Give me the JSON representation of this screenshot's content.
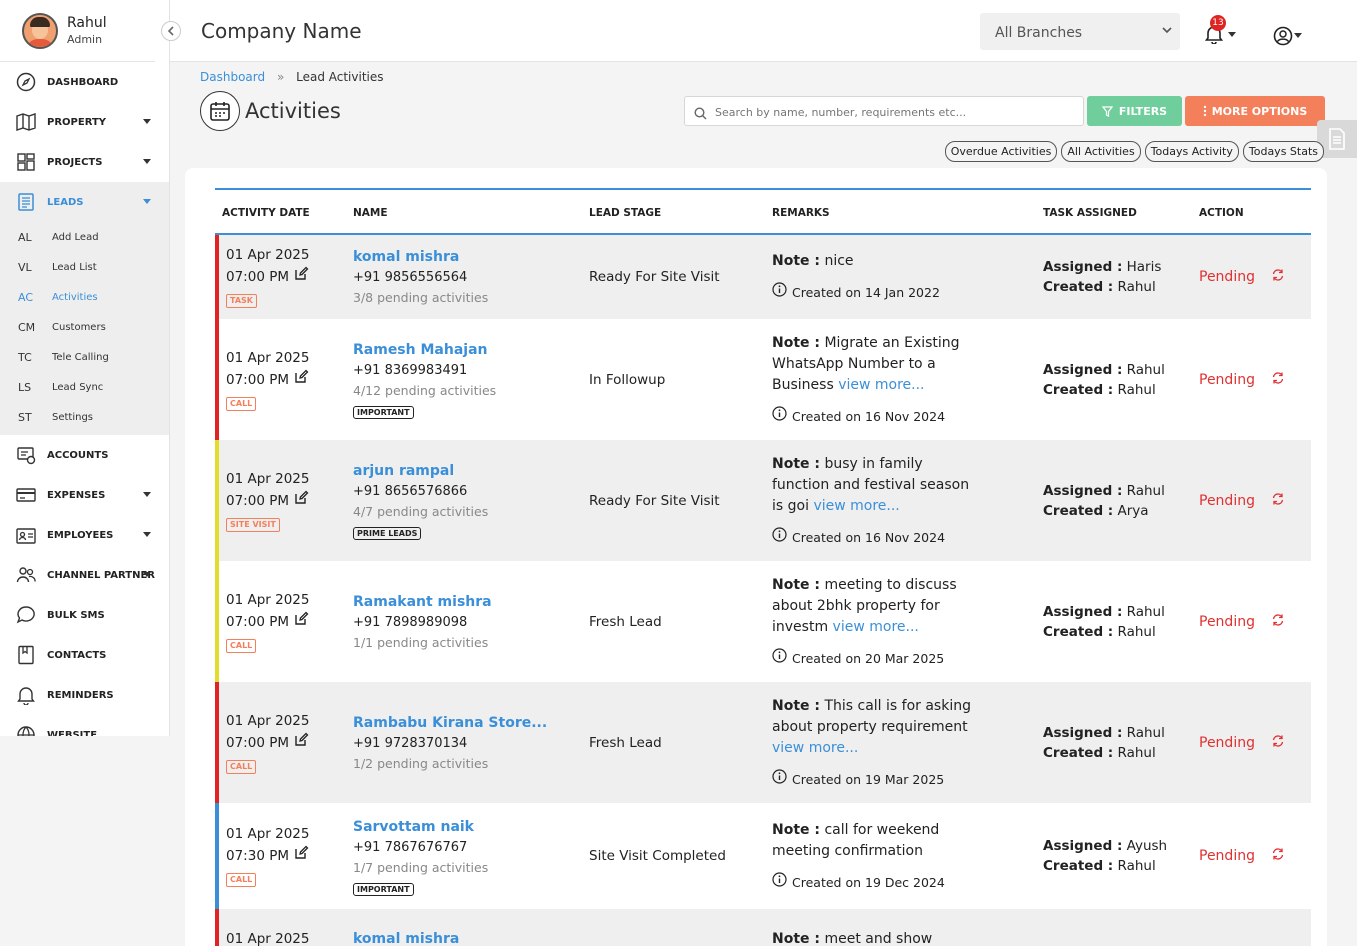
{
  "user": {
    "name": "Rahul",
    "role": "Admin"
  },
  "sidebar": {
    "items_top": [
      {
        "label": "DASHBOARD",
        "icon": "dashboard-icon",
        "caret": false
      },
      {
        "label": "PROPERTY",
        "icon": "map-icon",
        "caret": true
      },
      {
        "label": "PROJECTS",
        "icon": "projects-icon",
        "caret": true
      },
      {
        "label": "LEADS",
        "icon": "leads-icon",
        "caret": true,
        "active": true
      }
    ],
    "sub_items": [
      {
        "abbr": "AL",
        "label": "Add Lead"
      },
      {
        "abbr": "VL",
        "label": "Lead List"
      },
      {
        "abbr": "AC",
        "label": "Activities",
        "active": true
      },
      {
        "abbr": "CM",
        "label": "Customers"
      },
      {
        "abbr": "TC",
        "label": "Tele Calling"
      },
      {
        "abbr": "LS",
        "label": "Lead Sync"
      },
      {
        "abbr": "ST",
        "label": "Settings"
      }
    ],
    "items_bottom": [
      {
        "label": "ACCOUNTS",
        "icon": "accounts-icon",
        "caret": false
      },
      {
        "label": "EXPENSES",
        "icon": "card-icon",
        "caret": true
      },
      {
        "label": "EMPLOYEES",
        "icon": "id-card-icon",
        "caret": true
      },
      {
        "label": "CHANNEL PARTNER",
        "icon": "people-icon",
        "caret": true
      },
      {
        "label": "BULK SMS",
        "icon": "chat-icon",
        "caret": false
      },
      {
        "label": "CONTACTS",
        "icon": "book-icon",
        "caret": false
      },
      {
        "label": "REMINDERS",
        "icon": "bell-icon",
        "caret": false
      },
      {
        "label": "WEBSITE",
        "icon": "globe-icon",
        "caret": false
      }
    ]
  },
  "header": {
    "company": "Company Name",
    "branch": "All Branches",
    "notification_count": "13"
  },
  "breadcrumb": {
    "home": "Dashboard",
    "sep": "»",
    "current": "Lead Activities"
  },
  "page": {
    "title": "Activities",
    "search_placeholder": "Search by name, number, requirements etc...",
    "filters_label": "FILTERS",
    "more_label": "MORE OPTIONS"
  },
  "pills": [
    "Overdue Activities",
    "All Activities",
    "Todays Activity",
    "Todays Stats"
  ],
  "columns": [
    "ACTIVITY DATE",
    "NAME",
    "LEAD STAGE",
    "REMARKS",
    "TASK ASSIGNED",
    "ACTION"
  ],
  "labels": {
    "note": "Note :",
    "assigned": "Assigned :",
    "created": "Created :",
    "view_more": "view more..."
  },
  "rows": [
    {
      "date": "01 Apr 2025",
      "time": "07:00 PM",
      "tag": "TASK",
      "bar_color": "#e02424",
      "name": "komal mishra",
      "phone": "+91 9856556564",
      "pending": "3/8 pending activities",
      "badge": "",
      "stage": "Ready For Site Visit",
      "note": "nice",
      "more": false,
      "created_on": "Created on 14 Jan 2022",
      "assigned": "Haris",
      "created_by": "Rahul",
      "status": "Pending"
    },
    {
      "date": "01 Apr 2025",
      "time": "07:00 PM",
      "tag": "CALL",
      "bar_color": "#e02424",
      "name": "Ramesh Mahajan",
      "phone": "+91 8369983491",
      "pending": "4/12 pending activities",
      "badge": "IMPORTANT",
      "stage": "In Followup",
      "note": "Migrate an Existing WhatsApp Number to a Business",
      "more": true,
      "created_on": "Created on 16 Nov 2024",
      "assigned": "Rahul",
      "created_by": "Rahul",
      "status": "Pending"
    },
    {
      "date": "01 Apr 2025",
      "time": "07:00 PM",
      "tag": "SITE VISIT",
      "bar_color": "#e2dc2a",
      "name": "arjun rampal",
      "phone": "+91 8656576866",
      "pending": "4/7 pending activities",
      "badge": "PRIME LEADS",
      "stage": "Ready For Site Visit",
      "note": "busy in family function and festival season is goi",
      "more": true,
      "created_on": "Created on 16 Nov 2024",
      "assigned": "Rahul",
      "created_by": "Arya",
      "status": "Pending"
    },
    {
      "date": "01 Apr 2025",
      "time": "07:00 PM",
      "tag": "CALL",
      "bar_color": "#e2dc2a",
      "name": "Ramakant mishra",
      "phone": "+91 7898989098",
      "pending": "1/1 pending activities",
      "badge": "",
      "stage": "Fresh Lead",
      "note": "meeting to discuss about 2bhk property for investm",
      "more": true,
      "created_on": "Created on 20 Mar 2025",
      "assigned": "Rahul",
      "created_by": "Rahul",
      "status": "Pending"
    },
    {
      "date": "01 Apr 2025",
      "time": "07:00 PM",
      "tag": "CALL",
      "bar_color": "#e02424",
      "name": "Rambabu Kirana Store...",
      "phone": "+91 9728370134",
      "pending": "1/2 pending activities",
      "badge": "",
      "stage": "Fresh Lead",
      "note": "This call is for asking about property requirement",
      "more": true,
      "created_on": "Created on 19 Mar 2025",
      "assigned": "Rahul",
      "created_by": "Rahul",
      "status": "Pending"
    },
    {
      "date": "01 Apr 2025",
      "time": "07:30 PM",
      "tag": "CALL",
      "bar_color": "#3a8fd8",
      "name": "Sarvottam naik",
      "phone": "+91 7867676767",
      "pending": "1/7 pending activities",
      "badge": "IMPORTANT",
      "stage": "Site Visit Completed",
      "note": "call for weekend meeting confirmation",
      "more": false,
      "created_on": "Created on 19 Dec 2024",
      "assigned": "Ayush",
      "created_by": "Rahul",
      "status": "Pending"
    },
    {
      "date": "01 Apr 2025",
      "time": "",
      "tag": "",
      "bar_color": "#e02424",
      "name": "komal mishra",
      "phone": "",
      "pending": "",
      "badge": "",
      "stage": "",
      "note": "meet and show",
      "more": false,
      "created_on": "",
      "assigned": "",
      "created_by": "",
      "status": ""
    }
  ]
}
